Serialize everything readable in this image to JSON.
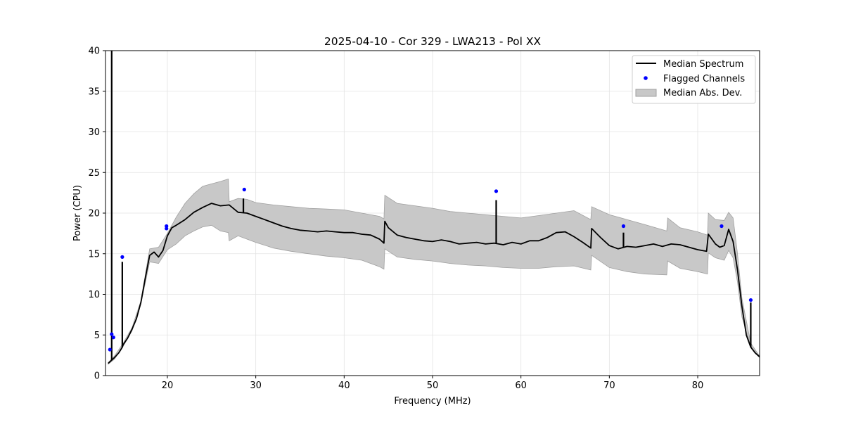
{
  "chart_data": {
    "type": "line",
    "title": "2025-04-10 - Cor 329 - LWA213 - Pol XX",
    "xlabel": "Frequency (MHz)",
    "ylabel": "Power (CPU)",
    "xlim": [
      13,
      87
    ],
    "ylim": [
      0,
      40
    ],
    "xticks": [
      20,
      30,
      40,
      50,
      60,
      70,
      80
    ],
    "yticks": [
      0,
      5,
      10,
      15,
      20,
      25,
      30,
      35,
      40
    ],
    "xtick_labels": [
      "20",
      "30",
      "40",
      "50",
      "60",
      "70",
      "80"
    ],
    "ytick_labels": [
      "0",
      "5",
      "10",
      "15",
      "20",
      "25",
      "30",
      "35",
      "40"
    ],
    "grid": true,
    "legend": {
      "position": "top-right",
      "entries": [
        "Median Spectrum",
        "Flagged Channels",
        "Median Abs. Dev."
      ]
    },
    "colors": {
      "median": "#000000",
      "flagged": "#0000ff",
      "band_fill": "#c8c8c8",
      "band_edge": "#a0a0a0"
    },
    "series": [
      {
        "name": "Median Spectrum",
        "x": [
          13.3,
          13.6,
          14.0,
          14.5,
          14.9,
          15.0,
          15.5,
          16.0,
          16.5,
          17.0,
          17.5,
          18.0,
          18.5,
          19.0,
          19.5,
          20.0,
          20.5,
          21.0,
          22.0,
          23.0,
          24.0,
          25.0,
          26.0,
          27.0,
          28.0,
          29.0,
          30.0,
          31.0,
          32.0,
          33.0,
          34.0,
          35.0,
          36.0,
          37.0,
          38.0,
          39.0,
          40.0,
          41.0,
          42.0,
          43.0,
          44.0,
          44.5,
          44.6,
          45.0,
          46.0,
          47.0,
          48.0,
          49.0,
          50.0,
          51.0,
          52.0,
          53.0,
          54.0,
          55.0,
          56.0,
          57.0,
          58.0,
          59.0,
          60.0,
          61.0,
          62.0,
          63.0,
          64.0,
          65.0,
          66.0,
          67.0,
          67.9,
          68.0,
          69.0,
          70.0,
          71.0,
          72.0,
          73.0,
          74.0,
          75.0,
          76.0,
          77.0,
          78.0,
          79.0,
          80.0,
          81.0,
          81.2,
          82.0,
          82.5,
          83.0,
          83.5,
          84.0,
          84.5,
          85.0,
          85.5,
          86.0,
          86.5,
          87.0
        ],
        "y": [
          1.5,
          1.8,
          2.2,
          2.8,
          3.5,
          3.8,
          4.6,
          5.7,
          7.0,
          9.0,
          12.0,
          14.8,
          15.2,
          14.6,
          15.4,
          17.2,
          18.2,
          18.5,
          19.2,
          20.1,
          20.7,
          21.2,
          20.9,
          21.0,
          20.1,
          20.0,
          19.6,
          19.2,
          18.8,
          18.4,
          18.1,
          17.9,
          17.8,
          17.7,
          17.8,
          17.7,
          17.6,
          17.6,
          17.4,
          17.3,
          16.8,
          16.3,
          19.0,
          18.2,
          17.3,
          17.0,
          16.8,
          16.6,
          16.5,
          16.7,
          16.5,
          16.2,
          16.3,
          16.4,
          16.2,
          16.3,
          16.1,
          16.4,
          16.2,
          16.6,
          16.6,
          17.0,
          17.6,
          17.7,
          17.1,
          16.4,
          15.7,
          18.1,
          17.0,
          16.0,
          15.6,
          15.9,
          15.8,
          16.0,
          16.2,
          15.9,
          16.2,
          16.1,
          15.8,
          15.5,
          15.3,
          17.4,
          16.2,
          15.8,
          16.0,
          18.0,
          16.5,
          13.0,
          8.5,
          5.0,
          3.5,
          2.8,
          2.3
        ],
        "spikes": [
          {
            "x": 13.7,
            "y": 40.0
          },
          {
            "x": 14.9,
            "y": 14.0
          },
          {
            "x": 28.6,
            "y": 21.8
          },
          {
            "x": 57.2,
            "y": 21.6
          },
          {
            "x": 71.6,
            "y": 17.6
          },
          {
            "x": 86.0,
            "y": 9.0
          }
        ]
      },
      {
        "name": "Median Abs. Dev.",
        "x": [
          13.3,
          14.0,
          15.0,
          16.0,
          17.0,
          18.0,
          19.0,
          20.0,
          21.0,
          22.0,
          23.0,
          24.0,
          25.0,
          26.0,
          26.9,
          27.0,
          28.0,
          29.0,
          30.0,
          32.0,
          34.0,
          36.0,
          38.0,
          40.0,
          42.0,
          44.0,
          44.5,
          44.6,
          46.0,
          48.0,
          50.0,
          52.0,
          54.0,
          56.0,
          58.0,
          60.0,
          62.0,
          64.0,
          66.0,
          67.9,
          68.0,
          70.0,
          72.0,
          74.0,
          76.5,
          76.6,
          78.0,
          80.0,
          81.1,
          81.2,
          82.0,
          83.0,
          83.5,
          84.0,
          84.5,
          85.0,
          86.0,
          87.0
        ],
        "upper": [
          1.6,
          2.4,
          4.0,
          5.9,
          9.2,
          15.6,
          15.8,
          17.5,
          19.5,
          21.2,
          22.4,
          23.3,
          23.6,
          23.9,
          24.2,
          21.4,
          21.8,
          21.7,
          21.3,
          21.0,
          20.8,
          20.6,
          20.5,
          20.4,
          20.0,
          19.6,
          19.3,
          22.2,
          21.2,
          20.9,
          20.6,
          20.2,
          20.0,
          19.8,
          19.6,
          19.4,
          19.7,
          20.0,
          20.3,
          19.2,
          20.8,
          19.8,
          19.2,
          18.6,
          17.8,
          19.4,
          18.2,
          17.7,
          17.3,
          20.0,
          19.2,
          19.1,
          20.1,
          19.4,
          15.0,
          9.5,
          4.0,
          2.4
        ],
        "lower": [
          1.4,
          2.0,
          3.6,
          5.5,
          8.8,
          14.0,
          13.8,
          15.5,
          16.2,
          17.2,
          17.8,
          18.3,
          18.5,
          17.8,
          17.6,
          16.6,
          17.2,
          16.8,
          16.4,
          15.7,
          15.3,
          15.0,
          14.7,
          14.5,
          14.2,
          13.4,
          13.1,
          15.6,
          14.6,
          14.3,
          14.1,
          13.8,
          13.6,
          13.5,
          13.3,
          13.2,
          13.2,
          13.4,
          13.5,
          13.0,
          14.8,
          13.3,
          12.8,
          12.5,
          12.4,
          14.1,
          13.2,
          12.8,
          12.5,
          15.1,
          14.5,
          14.2,
          15.4,
          14.5,
          11.5,
          7.2,
          3.6,
          2.2
        ]
      }
    ],
    "flagged_channels": [
      {
        "x": 13.5,
        "y": 3.2
      },
      {
        "x": 13.7,
        "y": 5.1
      },
      {
        "x": 13.9,
        "y": 4.7
      },
      {
        "x": 14.9,
        "y": 14.6
      },
      {
        "x": 19.9,
        "y": 18.1
      },
      {
        "x": 19.9,
        "y": 18.4
      },
      {
        "x": 28.7,
        "y": 22.9
      },
      {
        "x": 57.2,
        "y": 22.7
      },
      {
        "x": 71.6,
        "y": 18.4
      },
      {
        "x": 82.7,
        "y": 18.4
      },
      {
        "x": 86.0,
        "y": 9.3
      }
    ]
  }
}
